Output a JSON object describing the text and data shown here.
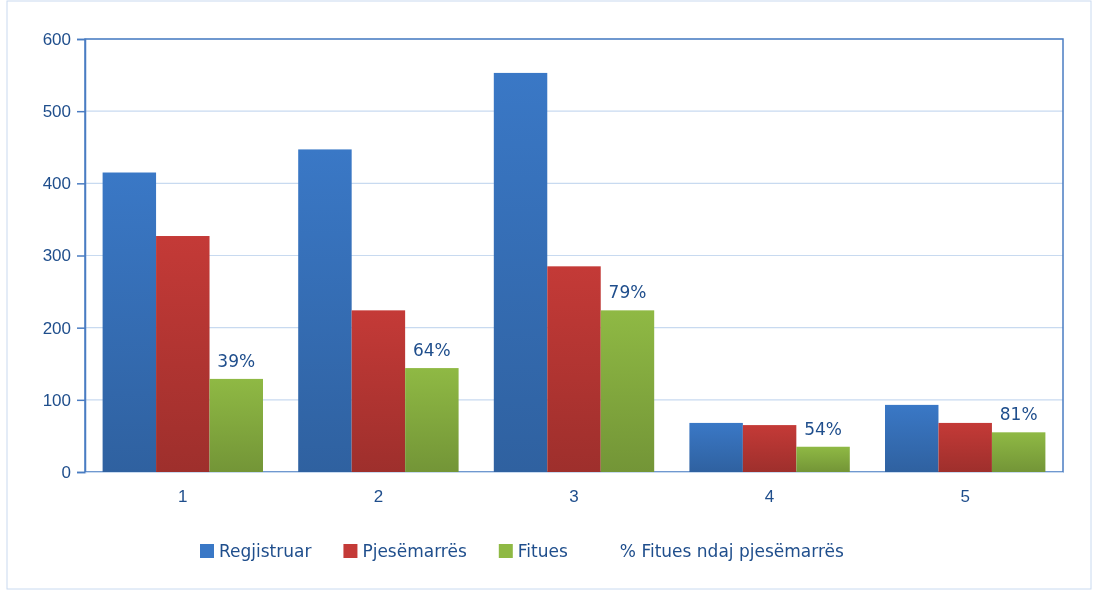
{
  "chart_data": {
    "type": "bar",
    "categories": [
      "1",
      "2",
      "3",
      "4",
      "5"
    ],
    "series": [
      {
        "name": "Regjistruar",
        "color": "#3a78c6",
        "values": [
          415,
          447,
          553,
          68,
          93
        ]
      },
      {
        "name": "Pjesëmarrës",
        "color": "#c43a37",
        "values": [
          327,
          224,
          285,
          65,
          68
        ]
      },
      {
        "name": "Fitues",
        "color": "#8fb944",
        "values": [
          129,
          144,
          224,
          35,
          55
        ]
      }
    ],
    "ylim": [
      0,
      600
    ],
    "yticks": [
      0,
      100,
      200,
      300,
      400,
      500,
      600
    ],
    "grid": "y",
    "legend": "bottom",
    "annotations": [
      "% Fitues ndaj pjesëmarrës",
      "39%",
      "64%",
      "79%",
      "54%",
      "81%"
    ]
  }
}
